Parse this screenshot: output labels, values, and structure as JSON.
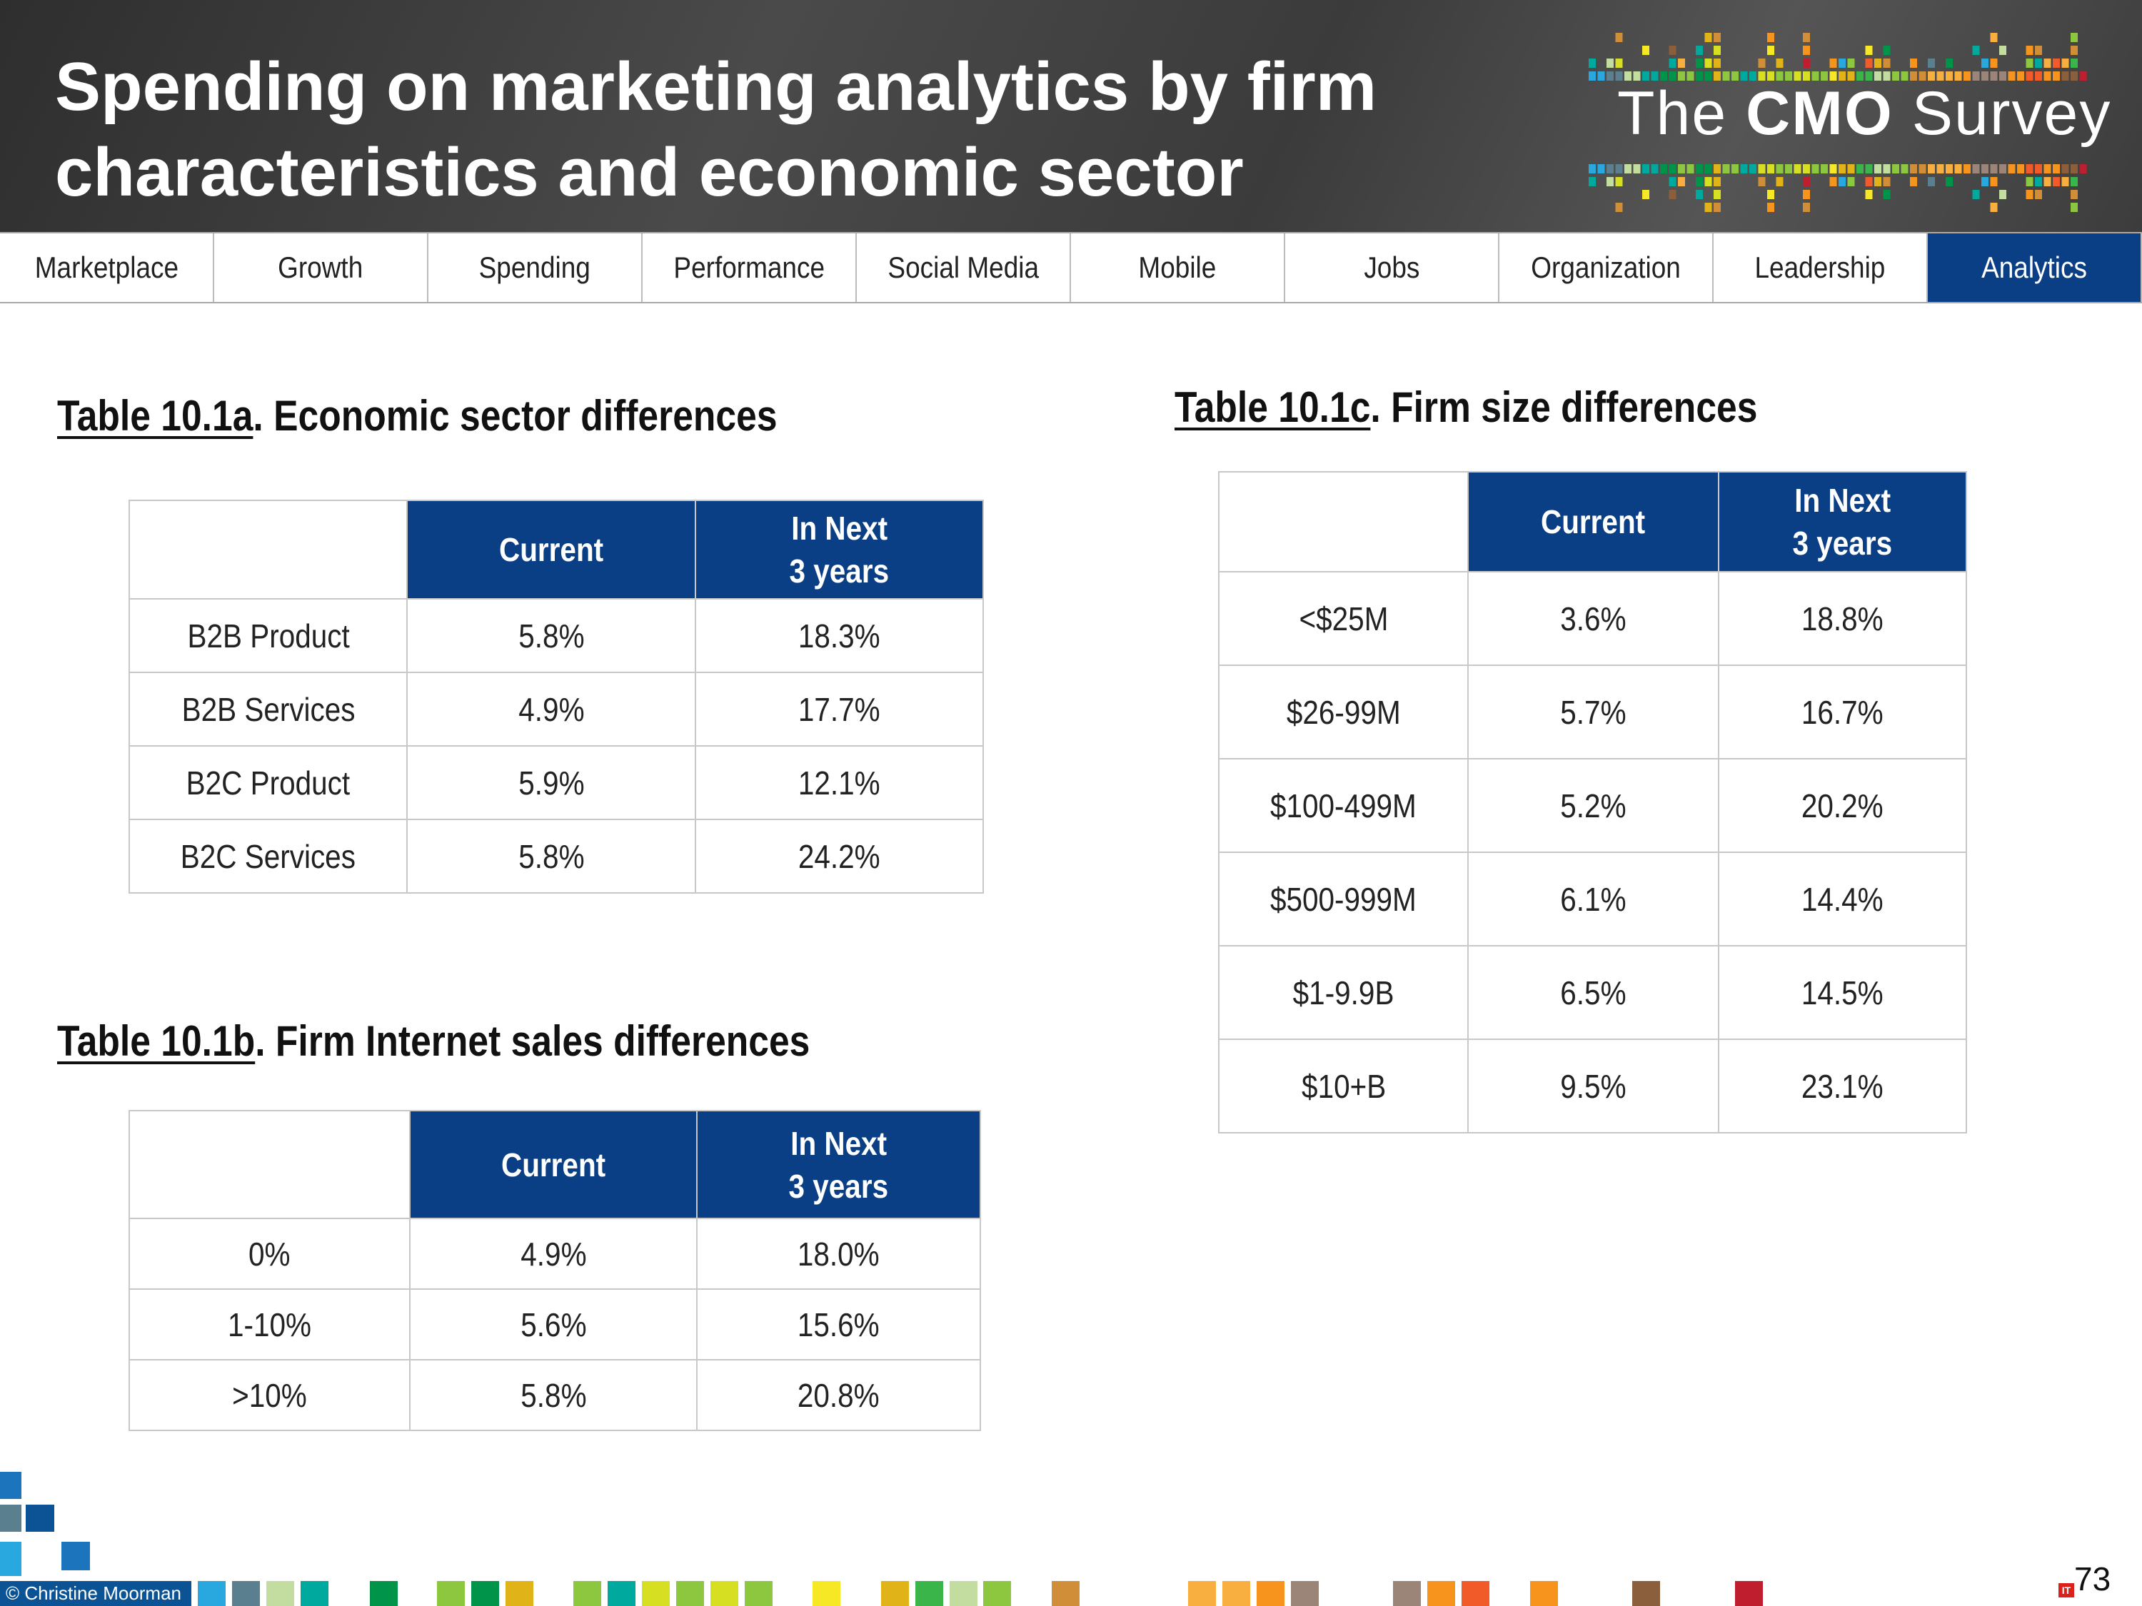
{
  "header": {
    "title_line1": "Spending on marketing analytics by firm",
    "title_line2": "characteristics and economic sector",
    "logo": {
      "the": "The",
      "cmo": "CMO",
      "survey": "Survey"
    }
  },
  "nav": {
    "tabs": [
      {
        "label": "Marketplace"
      },
      {
        "label": "Growth"
      },
      {
        "label": "Spending"
      },
      {
        "label": "Performance"
      },
      {
        "label": "Social Media"
      },
      {
        "label": "Mobile"
      },
      {
        "label": "Jobs"
      },
      {
        "label": "Organization"
      },
      {
        "label": "Leadership"
      },
      {
        "label": "Analytics",
        "active": true
      }
    ]
  },
  "tables": {
    "a": {
      "title_ref": "Table 10.1a",
      "title_rest": ". Economic sector differences",
      "headers": [
        "",
        "Current",
        "In Next\n3 years"
      ],
      "rows": [
        [
          "B2B Product",
          "5.8%",
          "18.3%"
        ],
        [
          "B2B Services",
          "4.9%",
          "17.7%"
        ],
        [
          "B2C Product",
          "5.9%",
          "12.1%"
        ],
        [
          "B2C Services",
          "5.8%",
          "24.2%"
        ]
      ]
    },
    "b": {
      "title_ref": "Table 10.1b",
      "title_rest": ". Firm Internet sales differences",
      "headers": [
        "",
        "Current",
        "In Next\n3 years"
      ],
      "rows": [
        [
          "0%",
          "4.9%",
          "18.0%"
        ],
        [
          "1-10%",
          "5.6%",
          "15.6%"
        ],
        [
          ">10%",
          "5.8%",
          "20.8%"
        ]
      ]
    },
    "c": {
      "title_ref": "Table 10.1c",
      "title_rest": ".  Firm size differences",
      "headers": [
        "",
        "Current",
        "In Next\n3 years"
      ],
      "rows": [
        [
          "<$25M",
          "3.6%",
          "18.8%"
        ],
        [
          "$26-99M",
          "5.7%",
          "16.7%"
        ],
        [
          "$100-499M",
          "5.2%",
          "20.2%"
        ],
        [
          "$500-999M",
          "6.1%",
          "14.4%"
        ],
        [
          "$1-9.9B",
          "6.5%",
          "14.5%"
        ],
        [
          "$10+B",
          "9.5%",
          "23.1%"
        ]
      ]
    }
  },
  "footer": {
    "copyright": "© Christine Moorman",
    "page_number": "73",
    "watermark": "IT之家"
  },
  "colors": {
    "accent": "#0b3f85",
    "strip": [
      "#29a8e0",
      "#5a7f8f",
      "#c3dca0",
      "#00a99d",
      "#00934a",
      "#8dc63f",
      "#00934a",
      "#e0b418",
      "#8dc63f",
      "#00a99d",
      "#d7df23",
      "#8dc63f",
      "#d7df23",
      "#8dc63f",
      "#f7e826",
      "#e0b418",
      "#39b54a",
      "#c3dca0",
      "#8dc63f",
      "#d08e38",
      "#f9ae40",
      "#f9ae40",
      "#f7941d",
      "#9b8579",
      "#9b8579",
      "#f7941d",
      "#f15a29",
      "#f7941d",
      "#8b5e3c",
      "#be1e2d"
    ]
  }
}
